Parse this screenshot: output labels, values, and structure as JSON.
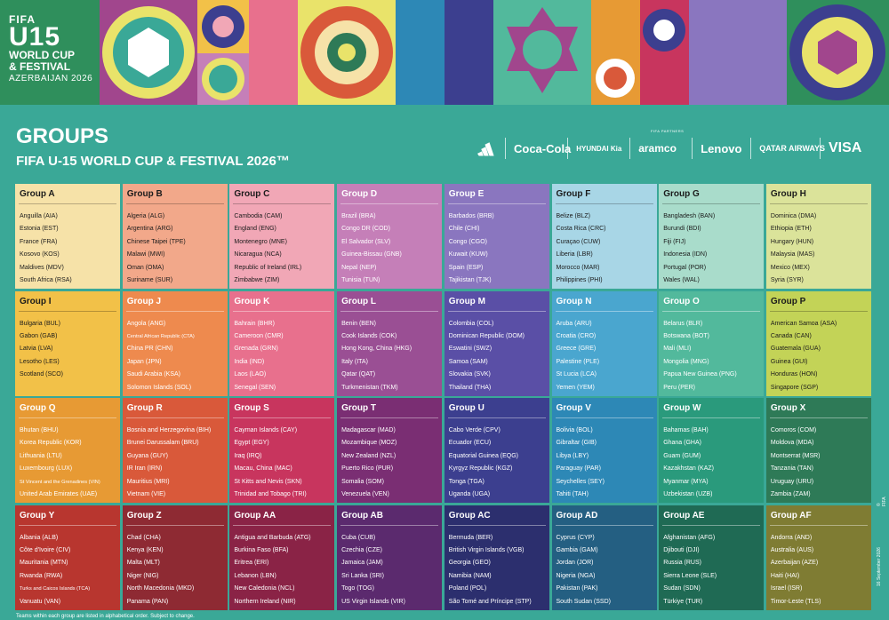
{
  "banner": {
    "logo": {
      "line1": "FIFA",
      "line2": "U15",
      "line3": "WORLD CUP",
      "line4": "& FESTIVAL",
      "line5": "AZERBAIJAN 2026"
    }
  },
  "header": {
    "title": "GROUPS",
    "subtitle": "FIFA U-15 WORLD CUP & FESTIVAL 2026™",
    "partners_label": "FIFA PARTNERS"
  },
  "partners": [
    {
      "icon": "adidas-icon",
      "label": ""
    },
    {
      "icon": "coca-cola-logo",
      "label": "Coca-Cola"
    },
    {
      "icon": "hyundai-kia-logo",
      "label": "HYUNDAI Kia"
    },
    {
      "icon": "aramco-logo",
      "label": "aramco"
    },
    {
      "icon": "lenovo-logo",
      "label": "Lenovo"
    },
    {
      "icon": "qatar-airways-logo",
      "label": "QATAR AIRWAYS"
    },
    {
      "icon": "visa-logo",
      "label": "VISA"
    }
  ],
  "groups": [
    {
      "name": "Group A",
      "color": "#f6e2a8",
      "text": "light",
      "teams": [
        "Anguilla (AIA)",
        "Estonia (EST)",
        "France (FRA)",
        "Kosovo (KOS)",
        "Maldives (MDV)",
        "South Africa (RSA)"
      ]
    },
    {
      "name": "Group B",
      "color": "#f2a88a",
      "text": "light",
      "teams": [
        "Algeria (ALG)",
        "Argentina (ARG)",
        "Chinese Taipei (TPE)",
        "Malawi (MWI)",
        "Oman (OMA)",
        "Suriname (SUR)"
      ]
    },
    {
      "name": "Group C",
      "color": "#f1a7b6",
      "text": "light",
      "teams": [
        "Cambodia (CAM)",
        "England (ENG)",
        "Montenegro (MNE)",
        "Nicaragua (NCA)",
        "Republic of Ireland (IRL)",
        "Zimbabwe (ZIM)"
      ]
    },
    {
      "name": "Group D",
      "color": "#c57fb8",
      "text": "dark",
      "teams": [
        "Brazil (BRA)",
        "Congo DR (COD)",
        "El Salvador (SLV)",
        "Guinea-Bissau (GNB)",
        "Nepal (NEP)",
        "Tunisia (TUN)"
      ]
    },
    {
      "name": "Group E",
      "color": "#8a76bf",
      "text": "dark",
      "teams": [
        "Barbados (BRB)",
        "Chile (CHI)",
        "Congo (CGO)",
        "Kuwait (KUW)",
        "Spain (ESP)",
        "Tajikistan (TJK)"
      ]
    },
    {
      "name": "Group F",
      "color": "#a8d6e6",
      "text": "light",
      "teams": [
        "Belize (BLZ)",
        "Costa Rica (CRC)",
        "Curaçao (CUW)",
        "Liberia (LBR)",
        "Morocco (MAR)",
        "Philippines (PHI)"
      ]
    },
    {
      "name": "Group G",
      "color": "#a9dccb",
      "text": "light",
      "teams": [
        "Bangladesh (BAN)",
        "Burundi (BDI)",
        "Fiji (FIJ)",
        "Indonesia (IDN)",
        "Portugal (POR)",
        "Wales (WAL)"
      ]
    },
    {
      "name": "Group H",
      "color": "#dbe39a",
      "text": "light",
      "teams": [
        "Dominica (DMA)",
        "Ethiopia (ETH)",
        "Hungary (HUN)",
        "Malaysia (MAS)",
        "Mexico (MEX)",
        "Syria (SYR)"
      ]
    },
    {
      "name": "Group I",
      "color": "#f2c148",
      "text": "light",
      "teams": [
        "Bulgaria (BUL)",
        "Gabon (GAB)",
        "Latvia (LVA)",
        "Lesotho (LES)",
        "Scotland (SCO)"
      ]
    },
    {
      "name": "Group J",
      "color": "#ee8a4e",
      "text": "dark",
      "teams": [
        "Angola (ANG)",
        "Central African Republic (CTA)",
        "China PR (CHN)",
        "Japan (JPN)",
        "Saudi Arabia (KSA)",
        "Solomon Islands (SOL)"
      ]
    },
    {
      "name": "Group K",
      "color": "#e8708d",
      "text": "dark",
      "teams": [
        "Bahrain (BHR)",
        "Cameroon (CMR)",
        "Grenada (GRN)",
        "India (IND)",
        "Laos (LAO)",
        "Senegal (SEN)"
      ]
    },
    {
      "name": "Group L",
      "color": "#9a4f94",
      "text": "dark",
      "teams": [
        "Benin (BEN)",
        "Cook Islands (COK)",
        "Hong Kong, China (HKG)",
        "Italy (ITA)",
        "Qatar (QAT)",
        "Turkmenistan (TKM)"
      ]
    },
    {
      "name": "Group M",
      "color": "#5a4fa6",
      "text": "dark",
      "teams": [
        "Colombia (COL)",
        "Dominican Republic (DOM)",
        "Eswatini (SWZ)",
        "Samoa (SAM)",
        "Slovakia (SVK)",
        "Thailand (THA)"
      ]
    },
    {
      "name": "Group N",
      "color": "#4aa6cf",
      "text": "dark",
      "teams": [
        "Aruba (ARU)",
        "Croatia (CRO)",
        "Greece (GRE)",
        "Palestine (PLE)",
        "St Lucia (LCA)",
        "Yemen (YEM)"
      ]
    },
    {
      "name": "Group O",
      "color": "#52b99c",
      "text": "dark",
      "teams": [
        "Belarus (BLR)",
        "Botswana (BOT)",
        "Mali (MLI)",
        "Mongolia (MNG)",
        "Papua New Guinea (PNG)",
        "Peru (PER)"
      ]
    },
    {
      "name": "Group P",
      "color": "#c3d357",
      "text": "light",
      "teams": [
        "American Samoa (ASA)",
        "Canada (CAN)",
        "Guatemala (GUA)",
        "Guinea (GUI)",
        "Honduras (HON)",
        "Singapore (SGP)"
      ]
    },
    {
      "name": "Group Q",
      "color": "#e79a34",
      "text": "dark",
      "teams": [
        "Bhutan (BHU)",
        "Korea Republic (KOR)",
        "Lithuania (LTU)",
        "Luxembourg (LUX)",
        "St Vincent and the Grenadines (VIN)",
        "United Arab Emirates (UAE)"
      ]
    },
    {
      "name": "Group R",
      "color": "#d9593a",
      "text": "dark",
      "teams": [
        "Bosnia and Herzegovina (BIH)",
        "Brunei Darussalam (BRU)",
        "Guyana (GUY)",
        "IR Iran (IRN)",
        "Mauritius (MRI)",
        "Vietnam (VIE)"
      ]
    },
    {
      "name": "Group S",
      "color": "#c8355e",
      "text": "dark",
      "teams": [
        "Cayman Islands (CAY)",
        "Egypt (EGY)",
        "Iraq (IRQ)",
        "Macau, China (MAC)",
        "St Kitts and Nevis (SKN)",
        "Trinidad and Tobago (TRI)"
      ]
    },
    {
      "name": "Group T",
      "color": "#7a2e73",
      "text": "dark",
      "teams": [
        "Madagascar (MAD)",
        "Mozambique (MOZ)",
        "New Zealand (NZL)",
        "Puerto Rico (PUR)",
        "Somalia (SOM)",
        "Venezuela (VEN)"
      ]
    },
    {
      "name": "Group U",
      "color": "#3c3f8f",
      "text": "dark",
      "teams": [
        "Cabo Verde (CPV)",
        "Ecuador (ECU)",
        "Equatorial Guinea (EQG)",
        "Kyrgyz Republic (KGZ)",
        "Tonga (TGA)",
        "Uganda (UGA)"
      ]
    },
    {
      "name": "Group V",
      "color": "#2d88b6",
      "text": "dark",
      "teams": [
        "Bolivia (BOL)",
        "Gibraltar (GIB)",
        "Libya (LBY)",
        "Paraguay (PAR)",
        "Seychelles (SEY)",
        "Tahiti (TAH)"
      ]
    },
    {
      "name": "Group W",
      "color": "#2a9a7c",
      "text": "dark",
      "teams": [
        "Bahamas (BAH)",
        "Ghana (GHA)",
        "Guam (GUM)",
        "Kazakhstan (KAZ)",
        "Myanmar (MYA)",
        "Uzbekistan (UZB)"
      ]
    },
    {
      "name": "Group X",
      "color": "#2e7a57",
      "text": "dark",
      "teams": [
        "Comoros (COM)",
        "Moldova (MDA)",
        "Montserrat (MSR)",
        "Tanzania (TAN)",
        "Uruguay (URU)",
        "Zambia (ZAM)"
      ]
    },
    {
      "name": "Group Y",
      "color": "#b8362f",
      "text": "dark",
      "teams": [
        "Albania (ALB)",
        "Côte d'Ivoire (CIV)",
        "Mauritania (MTN)",
        "Rwanda (RWA)",
        "Turks and Caicos Islands (TCA)",
        "Vanuatu (VAN)"
      ]
    },
    {
      "name": "Group Z",
      "color": "#8e2a33",
      "text": "dark",
      "teams": [
        "Chad (CHA)",
        "Kenya (KEN)",
        "Malta (MLT)",
        "Niger (NIG)",
        "North Macedonia (MKD)",
        "Panama (PAN)"
      ]
    },
    {
      "name": "Group AA",
      "color": "#8a2346",
      "text": "dark",
      "teams": [
        "Antigua and Barbuda (ATG)",
        "Burkina Faso (BFA)",
        "Eritrea (ERI)",
        "Lebanon (LBN)",
        "New Caledonia (NCL)",
        "Northern Ireland (NIR)"
      ]
    },
    {
      "name": "Group AB",
      "color": "#5b2a6e",
      "text": "dark",
      "teams": [
        "Cuba (CUB)",
        "Czechia (CZE)",
        "Jamaica (JAM)",
        "Sri Lanka (SRI)",
        "Togo (TOG)",
        "US Virgin Islands (VIR)"
      ]
    },
    {
      "name": "Group AC",
      "color": "#2c2f6e",
      "text": "dark",
      "teams": [
        "Bermuda (BER)",
        "British Virgin Islands (VGB)",
        "Georgia (GEO)",
        "Namibia (NAM)",
        "Poland (POL)",
        "São Tomé and Príncipe (STP)"
      ]
    },
    {
      "name": "Group AD",
      "color": "#245f82",
      "text": "dark",
      "teams": [
        "Cyprus (CYP)",
        "Gambia (GAM)",
        "Jordan (JOR)",
        "Nigeria (NGA)",
        "Pakistan (PAK)",
        "South Sudan (SSD)"
      ]
    },
    {
      "name": "Group AE",
      "color": "#1f6a54",
      "text": "dark",
      "teams": [
        "Afghanistan (AFG)",
        "Djibouti (DJI)",
        "Russia (RUS)",
        "Sierra Leone (SLE)",
        "Sudan (SDN)",
        "Türkiye (TUR)"
      ]
    },
    {
      "name": "Group AF",
      "color": "#7f7c33",
      "text": "dark",
      "teams": [
        "Andorra (AND)",
        "Australia (AUS)",
        "Azerbaijan (AZE)",
        "Haiti (HAI)",
        "Israel (ISR)",
        "Timor-Leste (TLS)"
      ]
    }
  ],
  "footer": {
    "note": "Teams within each group are listed in alphabetical order. Subject to change.",
    "date": "16 September 2026",
    "copyright": "© FIFA"
  }
}
